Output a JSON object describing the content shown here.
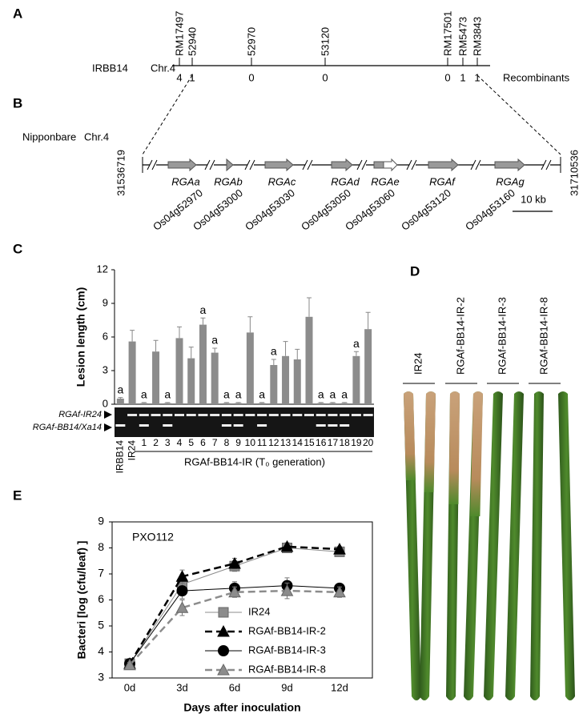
{
  "panel_labels": [
    "A",
    "B",
    "C",
    "D",
    "E"
  ],
  "map_a": {
    "line": "IRBB14",
    "chromosome": "Chr.4",
    "recombinants_label": "Recombinants",
    "markers": [
      {
        "name": "RM17497",
        "recombinants": 4
      },
      {
        "name": "52940",
        "recombinants": 1
      },
      {
        "name": "52970",
        "recombinants": 0
      },
      {
        "name": "53120",
        "recombinants": 0
      },
      {
        "name": "RM17501",
        "recombinants": 0
      },
      {
        "name": "RM5473",
        "recombinants": 1
      },
      {
        "name": "RM3843",
        "recombinants": 1
      }
    ]
  },
  "map_b": {
    "cultivar": "Nipponbare",
    "chromosome": "Chr.4",
    "start": "31536719",
    "end": "31710536",
    "scale": "10 kb",
    "genes": [
      {
        "name": "RGAa",
        "locus": "Os04g52970"
      },
      {
        "name": "RGAb",
        "locus": "Os04g53000"
      },
      {
        "name": "RGAc",
        "locus": "Os04g53030"
      },
      {
        "name": "RGAd",
        "locus": "Os04g53050"
      },
      {
        "name": "RGAe",
        "locus": "Os04g53060"
      },
      {
        "name": "RGAf",
        "locus": "Os04g53120"
      },
      {
        "name": "RGAg",
        "locus": "Os04g53160"
      }
    ]
  },
  "gel": {
    "band_labels": [
      "RGAf-IR24",
      "RGAf-BB14/Xa14"
    ],
    "group_label": "RGAf-BB14-IR (T₀ generation)"
  },
  "photo": {
    "labels": [
      "IR24",
      "RGAf-BB14-IR-2",
      "RGAf-BB14-IR-3",
      "RGAf-BB14-IR-8"
    ]
  },
  "chart_data": [
    {
      "type": "bar",
      "ylabel": "Lesion length (cm)",
      "color": "#8c8c8c",
      "categories": [
        "IRBB14",
        "IR24",
        "1",
        "2",
        "3",
        "4",
        "5",
        "6",
        "7",
        "8",
        "9",
        "10",
        "11",
        "12",
        "13",
        "14",
        "15",
        "16",
        "17",
        "18",
        "19",
        "20"
      ],
      "values": [
        0.5,
        5.6,
        0.1,
        4.7,
        0.1,
        5.9,
        4.1,
        7.1,
        4.6,
        0.1,
        0.1,
        6.4,
        0.1,
        3.5,
        4.3,
        4.0,
        7.8,
        0.1,
        0.1,
        0.1,
        4.3,
        6.7
      ],
      "errors": [
        0.1,
        1.0,
        0.05,
        1.0,
        0.05,
        1.0,
        1.0,
        0.6,
        0.4,
        0.05,
        0.05,
        1.4,
        0.05,
        0.5,
        1.3,
        0.9,
        1.7,
        0.05,
        0.05,
        0.05,
        0.4,
        1.5
      ],
      "significance": [
        "a",
        null,
        "a",
        null,
        "a",
        null,
        null,
        "a",
        "a",
        "a",
        "a",
        null,
        "a",
        "a",
        null,
        null,
        null,
        "a",
        "a",
        "a",
        "a",
        null
      ],
      "ylim": [
        0,
        12
      ],
      "yticks": [
        0,
        3,
        6,
        9,
        12
      ]
    },
    {
      "type": "line",
      "annotation": "PXO112",
      "xlabel": "Days after inoculation",
      "ylabel": "Bacteri [log (cfu/leaf) ]",
      "categories": [
        "0d",
        "3d",
        "6d",
        "9d",
        "12d"
      ],
      "ylim": [
        3,
        9
      ],
      "yticks": [
        3,
        4,
        5,
        6,
        7,
        8,
        9
      ],
      "series": [
        {
          "name": "IR24",
          "color": "#8c8c8c",
          "marker": "square",
          "line_style": "solid",
          "values": [
            3.55,
            6.6,
            7.3,
            8.0,
            7.85
          ],
          "errors": [
            0.1,
            0.3,
            0.2,
            0.15,
            0.15
          ]
        },
        {
          "name": "RGAf-BB14-IR-2",
          "color": "#000000",
          "marker": "triangle",
          "line_style": "dashed",
          "values": [
            3.55,
            6.9,
            7.4,
            8.05,
            7.95
          ],
          "errors": [
            0.1,
            0.25,
            0.2,
            0.15,
            0.1
          ]
        },
        {
          "name": "RGAf-BB14-IR-3",
          "color": "#000000",
          "marker": "circle",
          "line_style": "solid",
          "values": [
            3.55,
            6.35,
            6.45,
            6.55,
            6.45
          ],
          "errors": [
            0.1,
            0.3,
            0.25,
            0.3,
            0.15
          ]
        },
        {
          "name": "RGAf-BB14-IR-8",
          "color": "#8c8c8c",
          "marker": "triangle",
          "line_style": "dashed",
          "values": [
            3.5,
            5.7,
            6.3,
            6.35,
            6.3
          ],
          "errors": [
            0.1,
            0.3,
            0.2,
            0.3,
            0.2
          ]
        }
      ]
    }
  ]
}
